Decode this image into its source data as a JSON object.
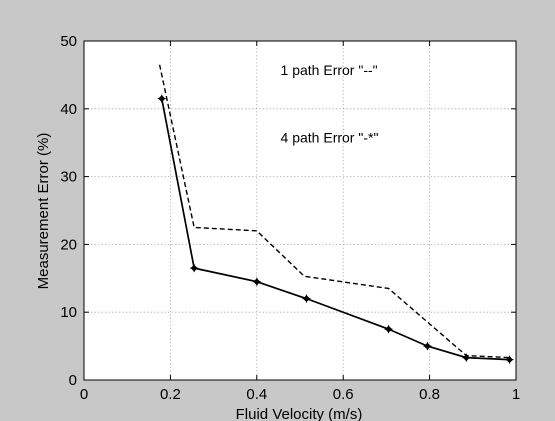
{
  "chart_data": {
    "type": "line",
    "title": "",
    "xlabel": "Fluid Velocity (m/s)",
    "ylabel": "Measurement Error (%)",
    "xlim": [
      0,
      1
    ],
    "ylim": [
      0,
      50
    ],
    "x_ticks": [
      "0",
      "0.2",
      "0.4",
      "0.6",
      "0.8",
      "1"
    ],
    "y_ticks": [
      "0",
      "10",
      "20",
      "30",
      "40",
      "50"
    ],
    "grid": true,
    "colors": {
      "figure_bg": "#c8c8c8",
      "plot_bg": "#ffffff",
      "line": "#000000",
      "grid": "#b0b0b0"
    },
    "annotations": [
      {
        "text": "1 path Error  \"--\"",
        "x": 0.455,
        "y": 45
      },
      {
        "text": "4 path Error  \"-*\"",
        "x": 0.455,
        "y": 35
      }
    ],
    "series": [
      {
        "style": "dashed",
        "x": [
          0.175,
          0.255,
          0.4,
          0.51,
          0.705,
          0.885,
          0.985
        ],
        "y": [
          46.5,
          22.5,
          22.0,
          15.3,
          13.5,
          3.6,
          3.3
        ]
      },
      {
        "style": "solid-markers",
        "x": [
          0.18,
          0.255,
          0.4,
          0.515,
          0.705,
          0.795,
          0.885,
          0.985
        ],
        "y": [
          41.5,
          16.5,
          14.5,
          12.0,
          7.5,
          5.0,
          3.3,
          3.0
        ]
      }
    ]
  }
}
